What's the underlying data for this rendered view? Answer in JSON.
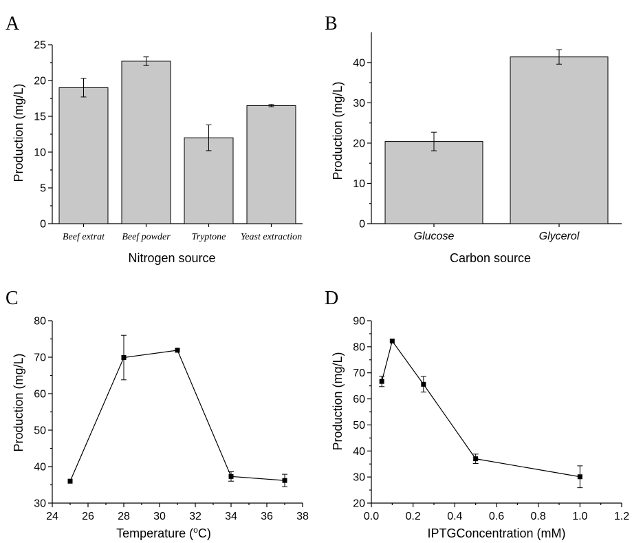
{
  "chart_data": [
    {
      "panel": "A",
      "type": "bar",
      "categories": [
        "Beef extrat",
        "Beef powder",
        "Tryptone",
        "Yeast extraction"
      ],
      "values": [
        19.0,
        22.7,
        12.0,
        16.5
      ],
      "errors": [
        1.3,
        0.6,
        1.8,
        0.15
      ],
      "xlabel": "Nitrogen source",
      "ylabel": "Production (mg/L)",
      "ylim": [
        0,
        25
      ],
      "yticks": [
        "0",
        "5",
        "10",
        "15",
        "20",
        "25"
      ]
    },
    {
      "panel": "B",
      "type": "bar",
      "categories": [
        "Glucose",
        "Glycerol"
      ],
      "values": [
        20.4,
        41.4
      ],
      "errors": [
        2.3,
        1.8
      ],
      "xlabel": "Carbon source",
      "ylabel": "Production (mg/L)",
      "ylim": [
        0,
        47.5
      ],
      "yticks": [
        "0",
        "10",
        "20",
        "30",
        "40"
      ]
    },
    {
      "panel": "C",
      "type": "line",
      "x": [
        25,
        28,
        31,
        34,
        37
      ],
      "y": [
        36.0,
        69.9,
        71.9,
        37.3,
        36.2
      ],
      "errors": [
        0,
        6.1,
        0,
        1.3,
        1.7
      ],
      "xlabel": "Temperature (",
      "xlabel_super": "o",
      "xlabel_suffix": "C)",
      "ylabel": "Production (mg/L)",
      "xlim": [
        24,
        38
      ],
      "ylim": [
        30,
        80
      ],
      "xticks": [
        "24",
        "26",
        "28",
        "30",
        "32",
        "34",
        "36",
        "38"
      ],
      "yticks": [
        "30",
        "40",
        "50",
        "60",
        "70",
        "80"
      ]
    },
    {
      "panel": "D",
      "type": "line",
      "x": [
        0.05,
        0.1,
        0.25,
        0.5,
        1.0
      ],
      "y": [
        66.7,
        82.2,
        65.6,
        37.0,
        30.1
      ],
      "errors": [
        2.0,
        0,
        3.0,
        1.8,
        4.2
      ],
      "xlabel": "IPTGConcentration (mM)",
      "ylabel": "Production (mg/L)",
      "xlim": [
        0,
        1.2
      ],
      "ylim": [
        20,
        90
      ],
      "xticks": [
        "0.0",
        "0.2",
        "0.4",
        "0.6",
        "0.8",
        "1.0",
        "1.2"
      ],
      "yticks": [
        "20",
        "30",
        "40",
        "50",
        "60",
        "70",
        "80",
        "90"
      ]
    }
  ]
}
